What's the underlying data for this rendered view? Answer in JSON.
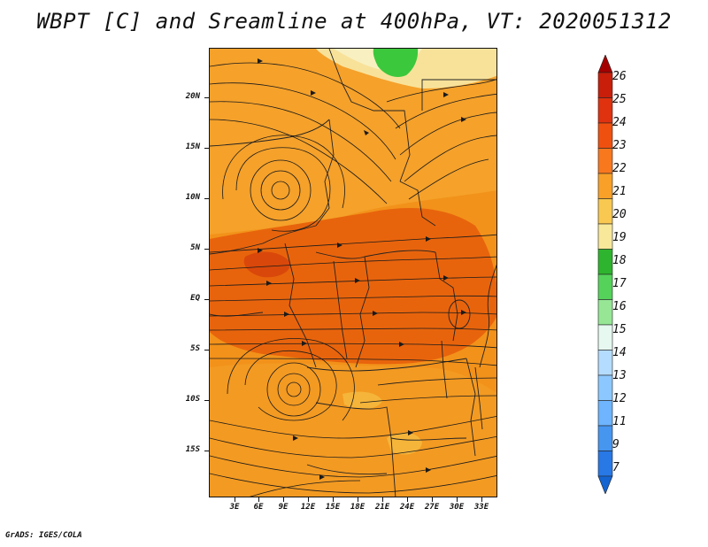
{
  "title": "WBPT [C] and Sreamline at 400hPa, VT: 2020051312",
  "credit": "GrADS: IGES/COLA",
  "axes": {
    "lat_labels": [
      "20N",
      "15N",
      "10N",
      "5N",
      "EQ",
      "5S",
      "10S",
      "15S"
    ],
    "lon_labels": [
      "3E",
      "6E",
      "9E",
      "12E",
      "15E",
      "18E",
      "21E",
      "24E",
      "27E",
      "30E",
      "33E"
    ]
  },
  "colorbar": {
    "labels": [
      "26",
      "25",
      "24",
      "23",
      "22",
      "21",
      "20",
      "19",
      "18",
      "17",
      "16",
      "15",
      "14",
      "13",
      "12",
      "11",
      "9",
      "7"
    ],
    "colors": [
      "#a50000",
      "#c81e0a",
      "#e0320f",
      "#f0500f",
      "#f8781e",
      "#f8a028",
      "#f8c850",
      "#f8e89a",
      "#2eb42e",
      "#55d25a",
      "#96e696",
      "#e6f8f0",
      "#b4dcff",
      "#8cc8ff",
      "#6eb4ff",
      "#4696f0",
      "#2878e6",
      "#1464d2"
    ]
  },
  "legend_colors": {
    "orange_deep": "#e8600a",
    "orange": "#f08a14",
    "orange_light": "#f5a623",
    "yellow": "#f8e29a",
    "green": "#3cc83c"
  }
}
